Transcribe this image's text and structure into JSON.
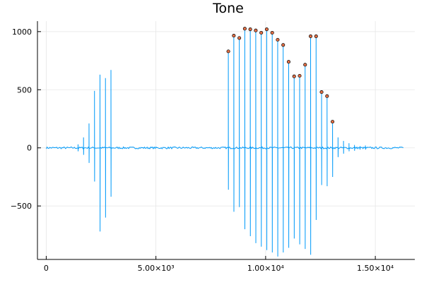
{
  "chart_data": {
    "type": "line",
    "title": "Tone",
    "xlabel": "",
    "ylabel": "",
    "xlim": [
      -400,
      16800
    ],
    "ylim": [
      -960,
      1090
    ],
    "grid": true,
    "legend": "none",
    "x_ticks": [
      {
        "value": 0,
        "label": "0"
      },
      {
        "value": 5000,
        "label": "5.00×10³"
      },
      {
        "value": 10000,
        "label": "1.00×10⁴"
      },
      {
        "value": 15000,
        "label": "1.50×10⁴"
      }
    ],
    "y_ticks": [
      {
        "value": -500,
        "label": "−500"
      },
      {
        "value": 0,
        "label": "0"
      },
      {
        "value": 500,
        "label": "500"
      },
      {
        "value": 1000,
        "label": "1000"
      }
    ],
    "colors": {
      "signal": "#009AF9",
      "markers": "#E26F46",
      "axes": "#000000",
      "grid": "#E6E6E6"
    },
    "series": [
      {
        "kind": "signal",
        "x_range": [
          0,
          16300
        ],
        "baseline_noise": 8,
        "spikes": [
          {
            "x": 1450,
            "high": 30,
            "low": -30
          },
          {
            "x": 1700,
            "high": 90,
            "low": -60
          },
          {
            "x": 1950,
            "high": 210,
            "low": -130
          },
          {
            "x": 2200,
            "high": 490,
            "low": -290
          },
          {
            "x": 2450,
            "high": 630,
            "low": -720
          },
          {
            "x": 2700,
            "high": 600,
            "low": -600
          },
          {
            "x": 2950,
            "high": 670,
            "low": -420
          },
          {
            "x": 8300,
            "high": 830,
            "low": -360
          },
          {
            "x": 8550,
            "high": 965,
            "low": -550
          },
          {
            "x": 8800,
            "high": 945,
            "low": -510
          },
          {
            "x": 9050,
            "high": 1025,
            "low": -700
          },
          {
            "x": 9300,
            "high": 1020,
            "low": -760
          },
          {
            "x": 9550,
            "high": 1010,
            "low": -820
          },
          {
            "x": 9800,
            "high": 990,
            "low": -850
          },
          {
            "x": 10050,
            "high": 1020,
            "low": -880
          },
          {
            "x": 10300,
            "high": 990,
            "low": -900
          },
          {
            "x": 10550,
            "high": 930,
            "low": -935
          },
          {
            "x": 10800,
            "high": 885,
            "low": -900
          },
          {
            "x": 11050,
            "high": 740,
            "low": -860
          },
          {
            "x": 11300,
            "high": 615,
            "low": -780
          },
          {
            "x": 11550,
            "high": 620,
            "low": -830
          },
          {
            "x": 11800,
            "high": 715,
            "low": -870
          },
          {
            "x": 12050,
            "high": 960,
            "low": -920
          },
          {
            "x": 12300,
            "high": 960,
            "low": -620
          },
          {
            "x": 12550,
            "high": 480,
            "low": -320
          },
          {
            "x": 12800,
            "high": 445,
            "low": -330
          },
          {
            "x": 13050,
            "high": 225,
            "low": -250
          },
          {
            "x": 13300,
            "high": 90,
            "low": -80
          },
          {
            "x": 13550,
            "high": 60,
            "low": -50
          },
          {
            "x": 13800,
            "high": 40,
            "low": -30
          },
          {
            "x": 14050,
            "high": 25,
            "low": -25
          },
          {
            "x": 14300,
            "high": 15,
            "low": -15
          },
          {
            "x": 14550,
            "high": 20,
            "low": -15
          }
        ]
      },
      {
        "kind": "scatter",
        "points": [
          {
            "x": 8300,
            "y": 830
          },
          {
            "x": 8550,
            "y": 965
          },
          {
            "x": 8800,
            "y": 945
          },
          {
            "x": 9050,
            "y": 1025
          },
          {
            "x": 9300,
            "y": 1020
          },
          {
            "x": 9550,
            "y": 1010
          },
          {
            "x": 9800,
            "y": 990
          },
          {
            "x": 10050,
            "y": 1020
          },
          {
            "x": 10300,
            "y": 990
          },
          {
            "x": 10550,
            "y": 930
          },
          {
            "x": 10800,
            "y": 885
          },
          {
            "x": 11050,
            "y": 740
          },
          {
            "x": 11300,
            "y": 615
          },
          {
            "x": 11550,
            "y": 620
          },
          {
            "x": 11800,
            "y": 715
          },
          {
            "x": 12050,
            "y": 960
          },
          {
            "x": 12300,
            "y": 960
          },
          {
            "x": 12550,
            "y": 480
          },
          {
            "x": 12800,
            "y": 445
          },
          {
            "x": 13050,
            "y": 225
          }
        ]
      }
    ]
  }
}
